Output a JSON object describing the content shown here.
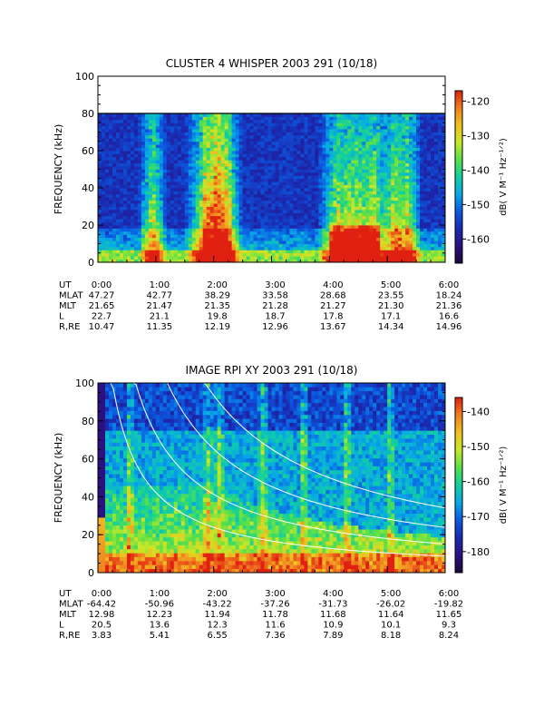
{
  "chart_data": [
    {
      "type": "heatmap",
      "title": "CLUSTER 4 WHISPER 2003 291 (10/18)",
      "ylabel": "FREQUENCY (kHz)",
      "ylim": [
        0,
        100
      ],
      "yticks": [
        0,
        20,
        40,
        60,
        80,
        100
      ],
      "data_ceiling_khz": 80,
      "colorbar": {
        "label": "dB( V M⁻¹ Hz⁻¹ᐟ²)",
        "range": [
          -167,
          -117
        ],
        "ticks": [
          -120,
          -130,
          -140,
          -150,
          -160
        ]
      },
      "x_hours": [
        0,
        1,
        2,
        3,
        4,
        5,
        6
      ],
      "ephemeris": [
        {
          "label": "UT",
          "values": [
            "0:00",
            "1:00",
            "2:00",
            "3:00",
            "4:00",
            "5:00",
            "6:00"
          ]
        },
        {
          "label": "MLAT",
          "values": [
            "47.27",
            "42.77",
            "38.29",
            "33.58",
            "28.68",
            "23.55",
            "18.24"
          ]
        },
        {
          "label": "MLT",
          "values": [
            "21.65",
            "21.47",
            "21.35",
            "21.28",
            "21.27",
            "21.30",
            "21.36"
          ]
        },
        {
          "label": "L",
          "values": [
            "22.7",
            "21.1",
            "19.8",
            "18.7",
            "17.8",
            "17.1",
            "16.6"
          ]
        },
        {
          "label": "R,RE",
          "values": [
            "10.47",
            "11.35",
            "12.19",
            "12.96",
            "13.67",
            "14.34",
            "14.96"
          ]
        }
      ],
      "colormap": [
        "#1a0a3c",
        "#2a1080",
        "#1a2ab0",
        "#0a5ae0",
        "#08a8e8",
        "#10d0a0",
        "#58e048",
        "#c8e828",
        "#f0c020",
        "#f08020",
        "#e02010"
      ]
    },
    {
      "type": "heatmap",
      "title": "IMAGE RPI XY 2003 291 (10/18)",
      "ylabel": "FREQUENCY (kHz)",
      "ylim": [
        0,
        100
      ],
      "yticks": [
        0,
        20,
        40,
        60,
        80,
        100
      ],
      "colorbar": {
        "label": "dB( V M⁻¹ Hz⁻¹ᐟ²)",
        "range": [
          -186,
          -136
        ],
        "ticks": [
          -140,
          -150,
          -160,
          -170,
          -180
        ]
      },
      "x_hours": [
        0,
        1,
        2,
        3,
        4,
        5,
        6
      ],
      "ephemeris": [
        {
          "label": "UT",
          "values": [
            "0:00",
            "1:00",
            "2:00",
            "3:00",
            "4:00",
            "5:00",
            "6:00"
          ]
        },
        {
          "label": "MLAT",
          "values": [
            "-64.42",
            "-50.96",
            "-43.22",
            "-37.26",
            "-31.73",
            "-26.02",
            "-19.82"
          ]
        },
        {
          "label": "MLT",
          "values": [
            "12.98",
            "12.23",
            "11.94",
            "11.78",
            "11.68",
            "11.64",
            "11.65"
          ]
        },
        {
          "label": "L",
          "values": [
            "20.5",
            "13.6",
            "12.3",
            "11.6",
            "10.9",
            "10.1",
            "9.3"
          ]
        },
        {
          "label": "R,RE",
          "values": [
            "3.83",
            "5.41",
            "6.55",
            "7.36",
            "7.89",
            "8.18",
            "8.24"
          ]
        }
      ],
      "colormap": [
        "#1a0a3c",
        "#2a1080",
        "#1a2ab0",
        "#0a5ae0",
        "#08a8e8",
        "#10d0a0",
        "#58e048",
        "#c8e828",
        "#f0c020",
        "#f08020",
        "#e02010"
      ]
    }
  ]
}
